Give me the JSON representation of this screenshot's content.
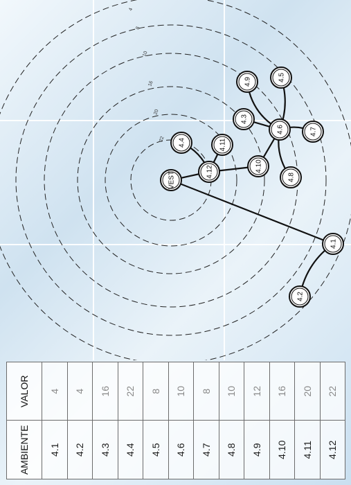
{
  "diagram": {
    "center_label": "VEST",
    "ring_labels": [
      "4",
      "8",
      "10",
      "16",
      "20",
      "22"
    ],
    "nodes": [
      {
        "id": "VEST",
        "label": "VEST"
      },
      {
        "id": "4.1",
        "label": "4.1"
      },
      {
        "id": "4.2",
        "label": "4.2"
      },
      {
        "id": "4.3",
        "label": "4.3"
      },
      {
        "id": "4.4",
        "label": "4.4"
      },
      {
        "id": "4.5",
        "label": "4.5"
      },
      {
        "id": "4.6",
        "label": "4.6"
      },
      {
        "id": "4.7",
        "label": "4.7"
      },
      {
        "id": "4.8",
        "label": "4.8"
      },
      {
        "id": "4.9",
        "label": "4.9"
      },
      {
        "id": "4.10",
        "label": "4.10"
      },
      {
        "id": "4.11",
        "label": "4.11"
      },
      {
        "id": "4.12",
        "label": "4.12"
      }
    ],
    "edges": [
      [
        "VEST",
        "4.1"
      ],
      [
        "4.1",
        "4.2"
      ],
      [
        "VEST",
        "4.12"
      ],
      [
        "4.12",
        "4.4"
      ],
      [
        "4.12",
        "4.11"
      ],
      [
        "4.12",
        "4.10"
      ],
      [
        "4.10",
        "4.6"
      ],
      [
        "4.6",
        "4.3"
      ],
      [
        "4.6",
        "4.9"
      ],
      [
        "4.6",
        "4.5"
      ],
      [
        "4.6",
        "4.7"
      ],
      [
        "4.6",
        "4.8"
      ]
    ]
  },
  "table": {
    "headers": [
      "AMBIENTE",
      "VALOR"
    ],
    "rows": [
      {
        "ambiente": "4.1",
        "valor": "4"
      },
      {
        "ambiente": "4.2",
        "valor": "4"
      },
      {
        "ambiente": "4.3",
        "valor": "16"
      },
      {
        "ambiente": "4.4",
        "valor": "22"
      },
      {
        "ambiente": "4.5",
        "valor": "8"
      },
      {
        "ambiente": "4.6",
        "valor": "10"
      },
      {
        "ambiente": "4.7",
        "valor": "8"
      },
      {
        "ambiente": "4.8",
        "valor": "10"
      },
      {
        "ambiente": "4.9",
        "valor": "12"
      },
      {
        "ambiente": "4.10",
        "valor": "16"
      },
      {
        "ambiente": "4.11",
        "valor": "20"
      },
      {
        "ambiente": "4.12",
        "valor": "22"
      }
    ]
  }
}
